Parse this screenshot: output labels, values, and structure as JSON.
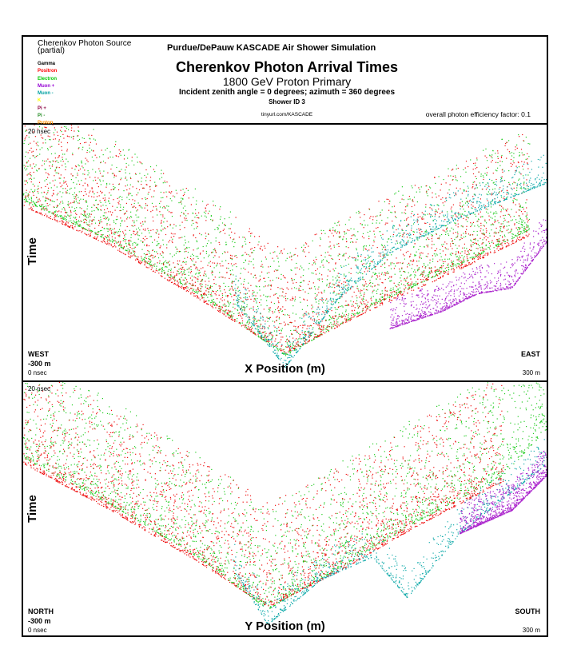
{
  "header": {
    "source_title": "Cherenkov Photon Source",
    "source_subtitle": "(partial)",
    "sim_title": "Purdue/DePauw KASCADE Air Shower Simulation",
    "main_title": "Cherenkov Photon Arrival Times",
    "sub_title": "1800 GeV Proton Primary",
    "angles": "Incident zenith angle =  0 degrees;  azimuth =  360 degrees",
    "shower_id": "Shower ID 3",
    "url": "tinyurl.com/KASCADE",
    "efficiency": "overall photon efficiency factor: 0.1"
  },
  "legend": [
    {
      "label": "Gamma",
      "color": "#000000"
    },
    {
      "label": "Positron",
      "color": "#ff0000"
    },
    {
      "label": "Electron",
      "color": "#00c800"
    },
    {
      "label": "Muon +",
      "color": "#9400d3"
    },
    {
      "label": "Muon -",
      "color": "#00a0a0"
    },
    {
      "label": "K",
      "color": "#ffff00"
    },
    {
      "label": "Pi +",
      "color": "#8b0040"
    },
    {
      "label": "Pi -",
      "color": "#228b22"
    },
    {
      "label": "Proton",
      "color": "#ff8c00"
    }
  ],
  "chart_data": [
    {
      "type": "scatter",
      "panel": "top",
      "xlabel": "X Position (m)",
      "ylabel": "Time",
      "xlim": [
        -300,
        300
      ],
      "ylim": [
        0,
        20
      ],
      "ylim_labels": {
        "top": "20 nsec",
        "bottom": "0 nsec"
      },
      "left_direction": "WEST",
      "left_range": "-300 m",
      "right_direction": "EAST",
      "right_range": "300 m",
      "series": [
        {
          "name": "Electron",
          "color": "#22cc22",
          "curves": [
            [
              -300,
              14.5
            ],
            [
              -200,
              11
            ],
            [
              -100,
              6.5
            ],
            [
              0,
              1.2
            ],
            [
              100,
              5.5
            ],
            [
              200,
              9
            ],
            [
              280,
              12
            ]
          ]
        },
        {
          "name": "Positron",
          "color": "#ee1111",
          "curves": [
            [
              -300,
              14
            ],
            [
              -200,
              10.6
            ],
            [
              -100,
              6.1
            ],
            [
              0,
              1.4
            ],
            [
              100,
              5.2
            ],
            [
              200,
              8.6
            ],
            [
              280,
              11.5
            ]
          ]
        },
        {
          "name": "Muon -",
          "color": "#11aaaa",
          "curves": [
            [
              -60,
              6
            ],
            [
              0,
              0.2
            ],
            [
              60,
              6
            ],
            [
              120,
              10
            ],
            [
              200,
              13
            ],
            [
              300,
              16
            ]
          ]
        },
        {
          "name": "Muon +",
          "color": "#aa22cc",
          "curves": [
            [
              120,
              3.5
            ],
            [
              180,
              5
            ],
            [
              220,
              6.5
            ],
            [
              260,
              7
            ],
            [
              300,
              11
            ]
          ]
        }
      ]
    },
    {
      "type": "scatter",
      "panel": "bottom",
      "xlabel": "Y Position (m)",
      "ylabel": "Time",
      "xlim": [
        -300,
        300
      ],
      "ylim": [
        0,
        20
      ],
      "ylim_labels": {
        "top": "20 nsec",
        "bottom": "0 nsec"
      },
      "left_direction": "NORTH",
      "left_range": "-300 m",
      "right_direction": "SOUTH",
      "right_range": "300 m",
      "series": [
        {
          "name": "Electron",
          "color": "#22cc22",
          "curves": [
            [
              -300,
              14.5
            ],
            [
              -200,
              10.5
            ],
            [
              -100,
              6
            ],
            [
              -20,
              1.5
            ],
            [
              60,
              5
            ],
            [
              150,
              9
            ],
            [
              250,
              13
            ],
            [
              300,
              17
            ]
          ]
        },
        {
          "name": "Positron",
          "color": "#ee1111",
          "curves": [
            [
              -300,
              14
            ],
            [
              -200,
              10
            ],
            [
              -100,
              5.6
            ],
            [
              -20,
              1.7
            ],
            [
              60,
              4.7
            ],
            [
              150,
              8.6
            ],
            [
              250,
              12.5
            ]
          ]
        },
        {
          "name": "Muon -",
          "color": "#11aaaa",
          "curves": [
            [
              -60,
              5
            ],
            [
              -20,
              0.2
            ],
            [
              40,
              4
            ],
            [
              100,
              6
            ],
            [
              140,
              2.5
            ],
            [
              200,
              8
            ],
            [
              300,
              14
            ]
          ]
        },
        {
          "name": "Muon +",
          "color": "#aa22cc",
          "curves": [
            [
              200,
              8
            ],
            [
              260,
              10
            ],
            [
              300,
              13
            ]
          ]
        }
      ]
    }
  ]
}
